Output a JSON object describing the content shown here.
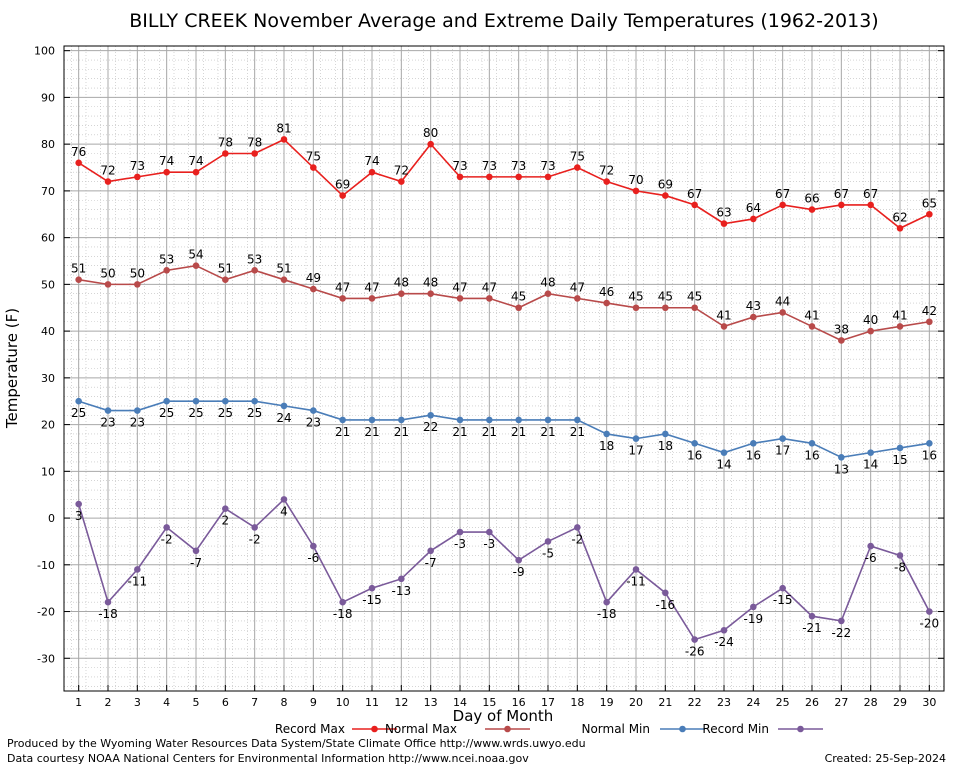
{
  "chart_data": {
    "type": "line",
    "title": "BILLY CREEK November Average and Extreme Daily Temperatures (1962-2013)",
    "xlabel": "Day of Month",
    "ylabel": "Temperature (F)",
    "x": [
      1,
      2,
      3,
      4,
      5,
      6,
      7,
      8,
      9,
      10,
      11,
      12,
      13,
      14,
      15,
      16,
      17,
      18,
      19,
      20,
      21,
      22,
      23,
      24,
      25,
      26,
      27,
      28,
      29,
      30
    ],
    "xlim": [
      0.5,
      30.5
    ],
    "ylim": [
      -37,
      101
    ],
    "yticks": [
      -30,
      -20,
      -10,
      0,
      10,
      20,
      30,
      40,
      50,
      60,
      70,
      80,
      90,
      100
    ],
    "grid": true,
    "legend_position": "bottom",
    "series": [
      {
        "name": "Record Max",
        "color": "#e8201e",
        "label_position": "above",
        "values": [
          76,
          72,
          73,
          74,
          74,
          78,
          78,
          81,
          75,
          69,
          74,
          72,
          80,
          73,
          73,
          73,
          73,
          75,
          72,
          70,
          69,
          67,
          63,
          64,
          67,
          66,
          67,
          67,
          62,
          65
        ]
      },
      {
        "name": "Normal Max",
        "color": "#b84a4a",
        "label_position": "above",
        "values": [
          51,
          50,
          50,
          53,
          54,
          51,
          53,
          51,
          49,
          47,
          47,
          48,
          48,
          47,
          47,
          45,
          48,
          47,
          46,
          45,
          45,
          45,
          41,
          43,
          44,
          41,
          38,
          40,
          41,
          42
        ]
      },
      {
        "name": "Normal Min",
        "color": "#4a7db8",
        "label_position": "below",
        "values": [
          25,
          23,
          23,
          25,
          25,
          25,
          25,
          24,
          23,
          21,
          21,
          21,
          22,
          21,
          21,
          21,
          21,
          21,
          18,
          17,
          18,
          16,
          14,
          16,
          17,
          16,
          13,
          14,
          15,
          16
        ]
      },
      {
        "name": "Record Min",
        "color": "#7a5a9a",
        "label_position": "below",
        "values": [
          3,
          -18,
          -11,
          -2,
          -7,
          2,
          -2,
          4,
          -6,
          -18,
          -15,
          -13,
          -7,
          -3,
          -3,
          -9,
          -5,
          -2,
          -18,
          -11,
          -16,
          -26,
          -24,
          -19,
          -15,
          -21,
          -22,
          -6,
          -8,
          -20
        ]
      }
    ]
  },
  "footer": {
    "producer": "Produced by the Wyoming Water Resources Data System/State Climate Office http://www.wrds.uwyo.edu",
    "source": "Data courtesy NOAA National Centers for Environmental Information http://www.ncei.noaa.gov",
    "created": "Created:  25-Sep-2024"
  }
}
